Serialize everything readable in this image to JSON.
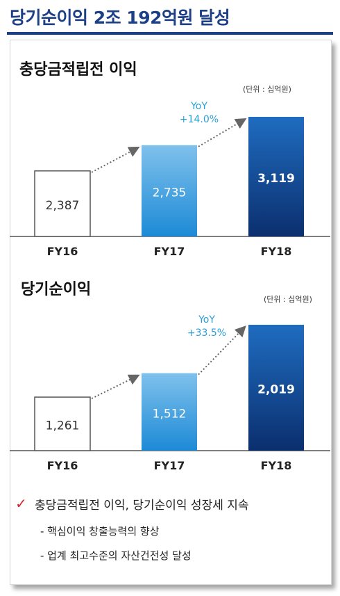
{
  "page": {
    "title": "당기순이익 2조 192억원 달성"
  },
  "chart_data": [
    {
      "type": "bar",
      "title": "충당금적립전 이익",
      "unit": "(단위 : 십억원)",
      "categories": [
        "FY16",
        "FY17",
        "FY18"
      ],
      "values": [
        2387,
        2735,
        3119
      ],
      "value_labels": [
        "2,387",
        "2,735",
        "3,119"
      ],
      "annotation": {
        "line1": "YoY",
        "line2": "+14.0%"
      },
      "ylim": [
        1500,
        3119
      ]
    },
    {
      "type": "bar",
      "title": "당기순이익",
      "unit": "(단위 : 십억원)",
      "categories": [
        "FY16",
        "FY17",
        "FY18"
      ],
      "values": [
        1261,
        1512,
        2019
      ],
      "value_labels": [
        "1,261",
        "1,512",
        "2,019"
      ],
      "annotation": {
        "line1": "YoY",
        "line2": "+33.5%"
      },
      "ylim": [
        700,
        2019
      ]
    }
  ],
  "notes": {
    "main": "충당금적립전 이익, 당기순이익 성장세 지속",
    "subs": [
      "- 핵심이익 창출능력의 향상",
      "- 업계 최고수준의 자산건전성 달성"
    ]
  },
  "colors": {
    "title": "#1d3f86",
    "fy17_top": "#7fc1ec",
    "fy17_bottom": "#1d8ad6",
    "fy18_top": "#1f6cc0",
    "fy18_bottom": "#0b2f6e",
    "check": "#d9232e"
  }
}
